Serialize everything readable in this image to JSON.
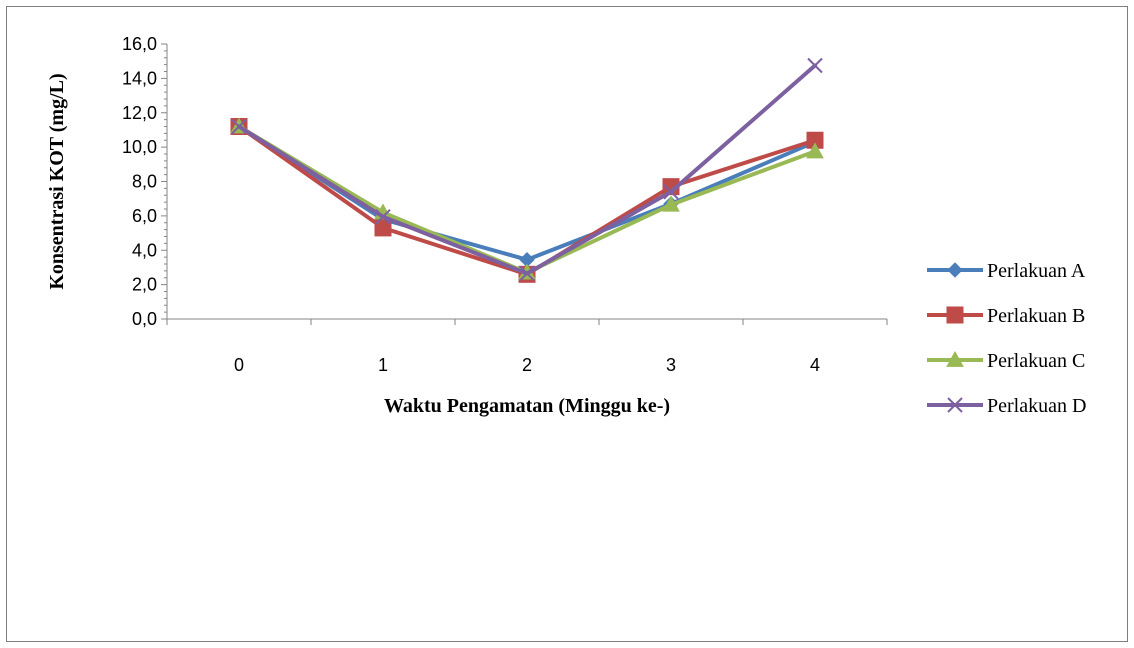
{
  "chart_data": {
    "type": "line",
    "xlabel": "Waktu Pengamatan (Minggu ke-)",
    "ylabel": "Konsentrasi KOT (mg/L)",
    "categories": [
      "0",
      "1",
      "2",
      "3",
      "4"
    ],
    "ylim": [
      0,
      16
    ],
    "yticks": [
      "0,0",
      "2,0",
      "4,0",
      "6,0",
      "8,0",
      "10,0",
      "12,0",
      "14,0",
      "16,0"
    ],
    "grid": false,
    "legend_position": "right",
    "series": [
      {
        "name": "Perlakuan A",
        "color": "#4a7ebb",
        "marker": "diamond",
        "values": [
          11.2,
          5.8,
          3.45,
          6.7,
          10.3
        ]
      },
      {
        "name": "Perlakuan B",
        "color": "#be4b48",
        "marker": "square",
        "values": [
          11.2,
          5.3,
          2.6,
          7.7,
          10.4
        ]
      },
      {
        "name": "Perlakuan C",
        "color": "#98b954",
        "marker": "triangle",
        "values": [
          11.2,
          6.2,
          2.7,
          6.65,
          9.75
        ]
      },
      {
        "name": "Perlakuan D",
        "color": "#7d60a0",
        "marker": "x",
        "values": [
          11.2,
          5.95,
          2.65,
          7.4,
          14.75
        ]
      }
    ]
  }
}
